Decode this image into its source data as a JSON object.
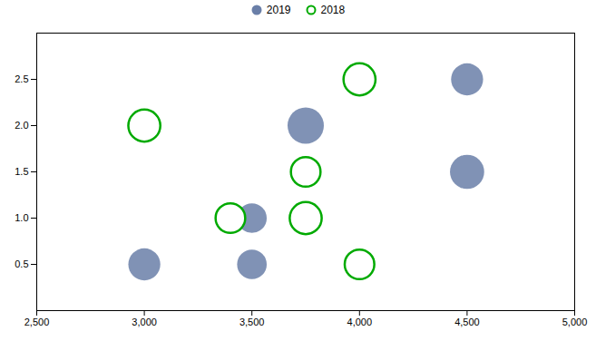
{
  "chart_data": {
    "type": "scatter",
    "series": [
      {
        "name": "2019",
        "color": "#6a7fa8",
        "marker": "circle",
        "x": [
          3500,
          3750,
          4500,
          3500,
          4500,
          3000
        ],
        "values": [
          1.0,
          2.0,
          2.5,
          0.5,
          1.5,
          0.5
        ],
        "sizes": [
          600,
          900,
          700,
          600,
          800,
          700
        ]
      },
      {
        "name": "2018",
        "color": "#00aa00",
        "marker": "open_circle",
        "x": [
          3000,
          3400,
          3750,
          3750,
          4000,
          4000
        ],
        "values": [
          2.0,
          1.0,
          1.0,
          1.5,
          2.5,
          0.5
        ],
        "sizes": [
          700,
          600,
          700,
          600,
          700,
          600
        ]
      }
    ],
    "xlim": [
      2500,
      5000
    ],
    "ylim": [
      0,
      3.0
    ],
    "xticks": [
      {
        "value": 2500,
        "label": "2,500"
      },
      {
        "value": 3000,
        "label": "3,000"
      },
      {
        "value": 3500,
        "label": "3,500"
      },
      {
        "value": 4000,
        "label": "4,000"
      },
      {
        "value": 4500,
        "label": "4,500"
      },
      {
        "value": 5000,
        "label": "5,000"
      }
    ],
    "yticks": [
      0.5,
      {
        "value": 1,
        "label": "1.0"
      },
      1.5,
      {
        "value": 2,
        "label": "2.0"
      },
      2.5
    ],
    "grid": false,
    "legend": "top"
  }
}
